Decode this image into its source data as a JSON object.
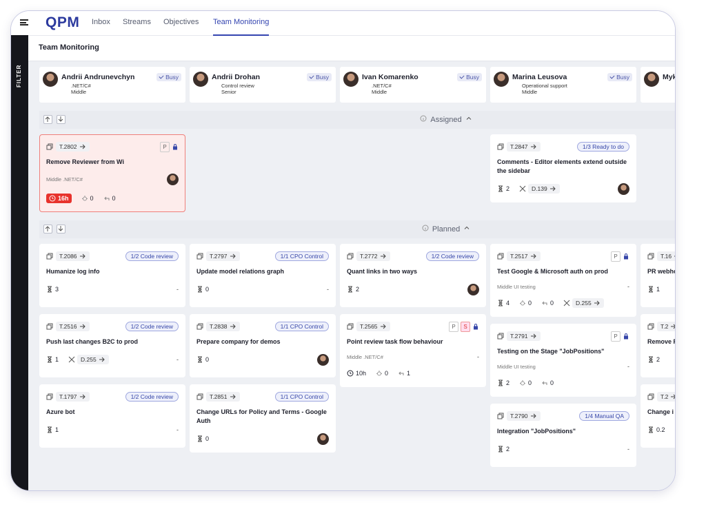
{
  "nav": {
    "logo": "QPM",
    "tabs": [
      "Inbox",
      "Streams",
      "Objectives",
      "Team Monitoring"
    ],
    "active_tab": 3
  },
  "sidebar": {
    "label": "FILTER"
  },
  "page_title": "Team Monitoring",
  "people": [
    {
      "name": "Andrii Andrunevchyn",
      "status": "Busy",
      "skill": ".NET/C#",
      "level": "Middle"
    },
    {
      "name": "Andrii Drohan",
      "status": "Busy",
      "skill": "Control review",
      "level": "Senior"
    },
    {
      "name": "Ivan Komarenko",
      "status": "Busy",
      "skill": ".NET/C#",
      "level": "Middle"
    },
    {
      "name": "Marina Leusova",
      "status": "Busy",
      "skill": "Operational support",
      "level": "Middle"
    },
    {
      "name": "Myk"
    }
  ],
  "sections": [
    {
      "title": "Assigned",
      "columns": [
        [
          {
            "id": "T.2802",
            "flags": [
              "P"
            ],
            "locked": true,
            "alert": true,
            "title": "Remove Reviewer from Wi",
            "meta": "Middle .NET/C#",
            "avatar": true,
            "time": "16h",
            "bugs": "0",
            "returns": "0"
          }
        ],
        [],
        [],
        [
          {
            "id": "T.2847",
            "status": "1/3 Ready to do",
            "title": "Comments - Editor elements extend outside the sidebar",
            "estimate": "2",
            "deploy": "D.139",
            "avatar": true
          }
        ],
        []
      ]
    },
    {
      "title": "Planned",
      "columns": [
        [
          {
            "id": "T.2086",
            "status": "1/2 Code review",
            "title": "Humanize log info",
            "estimate": "3",
            "right": "-"
          },
          {
            "id": "T.2516",
            "status": "1/2 Code review",
            "title": "Push last changes B2C to prod",
            "estimate": "1",
            "deploy": "D.255",
            "right": "-"
          },
          {
            "id": "T.1797",
            "status": "1/2 Code review",
            "title": "Azure bot",
            "estimate": "1",
            "right": "-"
          }
        ],
        [
          {
            "id": "T.2797",
            "status": "1/1 CPO Control",
            "title": "Update model relations graph",
            "estimate": "0",
            "right": "-"
          },
          {
            "id": "T.2838",
            "status": "1/1 CPO Control",
            "title": "Prepare company for demos",
            "estimate": "0",
            "avatar": true
          },
          {
            "id": "T.2851",
            "status": "1/1 CPO Control",
            "title": "Change URLs for Policy and Terms - Google Auth",
            "estimate": "0",
            "avatar": true
          }
        ],
        [
          {
            "id": "T.2772",
            "status": "1/2 Code review",
            "title": "Quant links in two ways",
            "estimate": "2",
            "avatar": true
          },
          {
            "id": "T.2565",
            "flags": [
              "P",
              "S"
            ],
            "locked": true,
            "title": "Point review task flow behaviour",
            "meta": "Middle .NET/C#",
            "right": "-",
            "time": "10h",
            "bugs": "0",
            "returns": "1"
          }
        ],
        [
          {
            "id": "T.2517",
            "flags": [
              "P"
            ],
            "locked": true,
            "title": "Test Google & Microsoft auth on prod",
            "meta": "Middle UI testing",
            "right": "-",
            "estimate": "4",
            "bugs": "0",
            "returns": "0",
            "deploy": "D.255"
          },
          {
            "id": "T.2791",
            "flags": [
              "P"
            ],
            "locked": true,
            "title": "Testing on the Stage \"JobPositions\"",
            "meta": "Middle UI testing",
            "right": "-",
            "estimate": "2",
            "bugs": "0",
            "returns": "0"
          },
          {
            "id": "T.2790",
            "status": "1/4 Manual QA",
            "title": "Integration \"JobPositions\"",
            "estimate": "2",
            "right": "-"
          }
        ],
        [
          {
            "id": "T.16",
            "title": "PR webho",
            "estimate": "1"
          },
          {
            "id": "T.2",
            "title": "Remove R",
            "estimate": "2"
          },
          {
            "id": "T.2",
            "title": "Change i Journalin",
            "estimate": "0.2"
          }
        ]
      ]
    }
  ]
}
